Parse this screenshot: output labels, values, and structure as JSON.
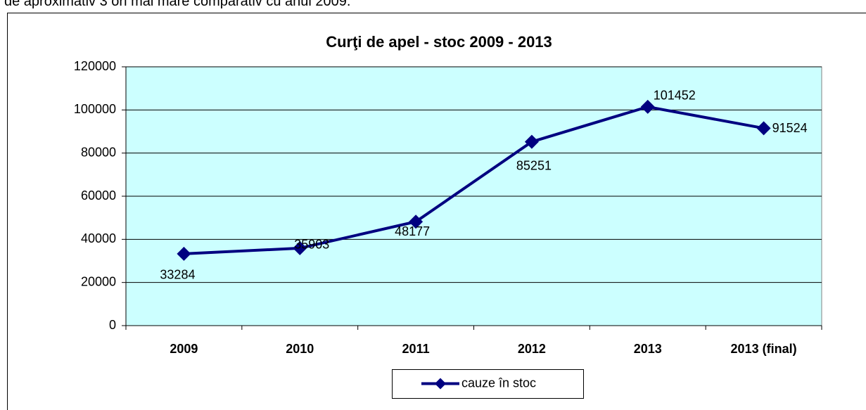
{
  "header_text": "i de aproximativ 3 ori mai mare comparativ cu anul 2009.",
  "chart_data": {
    "type": "line",
    "title": "Curţi de apel - stoc 2009 - 2013",
    "categories": [
      "2009",
      "2010",
      "2011",
      "2012",
      "2013",
      "2013 (final)"
    ],
    "series": [
      {
        "name": "cauze în stoc",
        "color": "#000080",
        "values": [
          33284,
          35903,
          48177,
          85251,
          101452,
          91524
        ]
      }
    ],
    "ylim": [
      0,
      120000
    ],
    "yticks": [
      0,
      20000,
      40000,
      60000,
      80000,
      100000,
      120000
    ],
    "grid": true,
    "background": "#ccffff",
    "legend": "bottom"
  }
}
